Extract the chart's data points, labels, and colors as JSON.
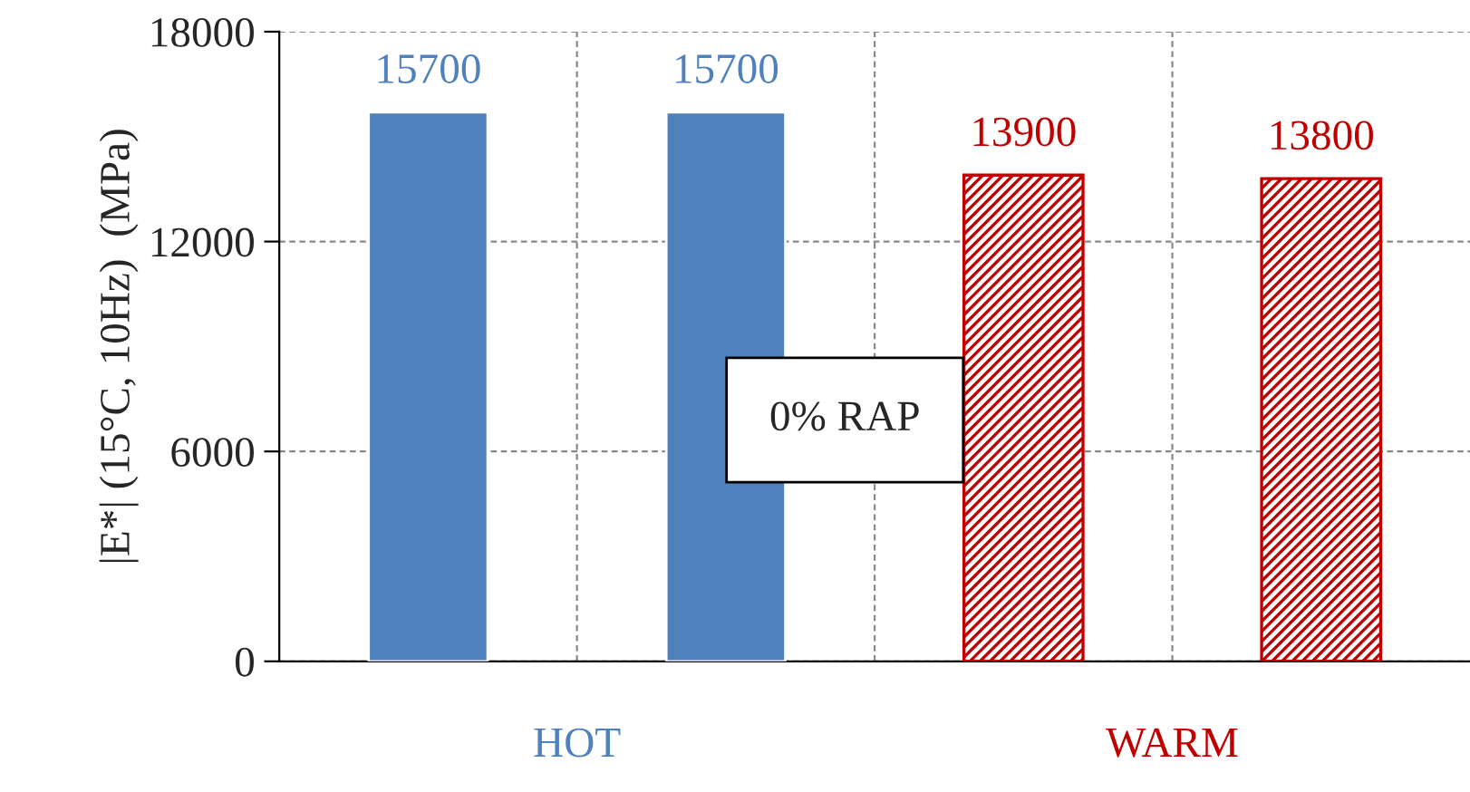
{
  "chart_data": {
    "type": "bar",
    "ylabel": "|E*| (15°C, 10Hz)  (MPa)",
    "categories": [
      null,
      null,
      null,
      null
    ],
    "series": [
      {
        "name": "HOT",
        "color": "#4f81bd",
        "values": [
          15700,
          15700,
          null,
          null
        ]
      },
      {
        "name": "WARM",
        "color": "#c00000",
        "values": [
          null,
          null,
          13900,
          13800
        ]
      }
    ],
    "ylim": [
      0,
      18000
    ],
    "yticks": [
      0,
      6000,
      12000,
      18000
    ],
    "grid": true,
    "data_labels": true,
    "annotations": [
      "0% RAP"
    ]
  }
}
